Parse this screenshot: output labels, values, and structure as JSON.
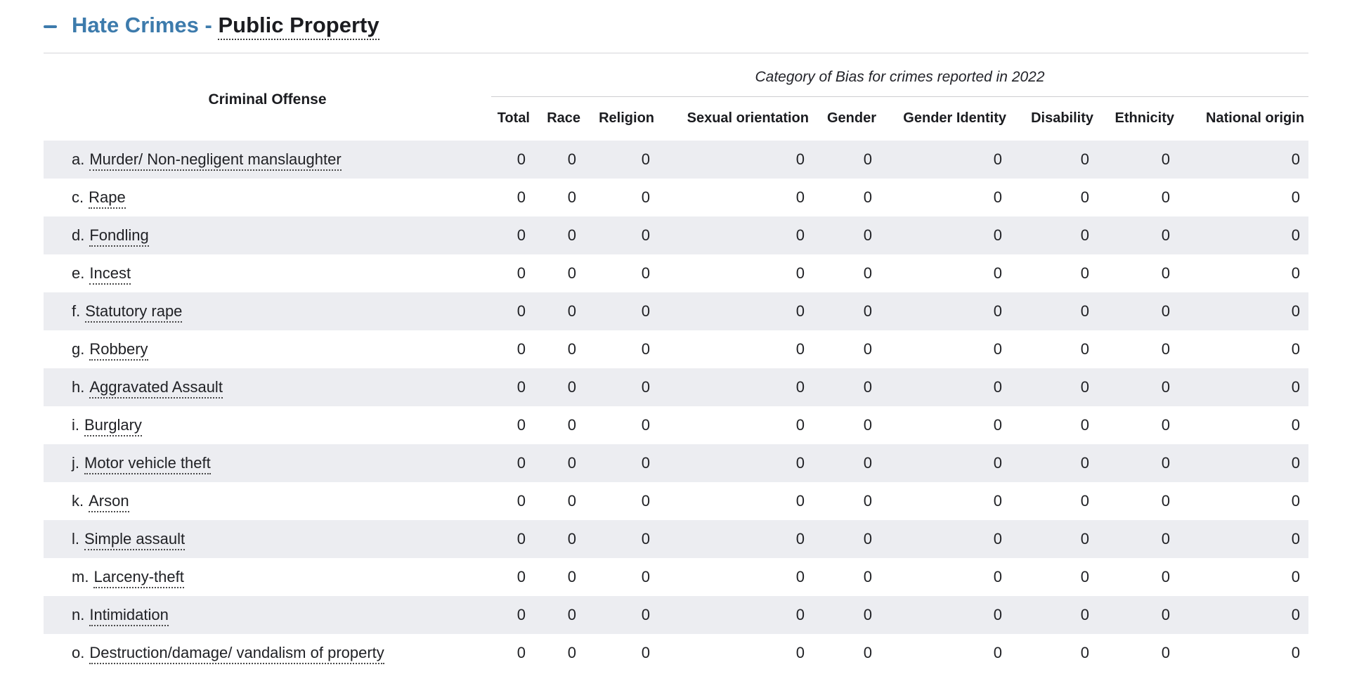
{
  "header": {
    "collapse_icon": "minus-icon",
    "title_prefix": "Hate Crimes - ",
    "title_term": "Public Property"
  },
  "table": {
    "offense_header": "Criminal Offense",
    "bias_group_header": "Category of Bias for crimes reported in 2022",
    "columns": [
      "Total",
      "Race",
      "Religion",
      "Sexual orientation",
      "Gender",
      "Gender Identity",
      "Disability",
      "Ethnicity",
      "National origin"
    ],
    "rows": [
      {
        "prefix": "a.",
        "label": "Murder/ Non-negligent manslaughter",
        "values": [
          0,
          0,
          0,
          0,
          0,
          0,
          0,
          0,
          0
        ]
      },
      {
        "prefix": "c.",
        "label": "Rape",
        "values": [
          0,
          0,
          0,
          0,
          0,
          0,
          0,
          0,
          0
        ]
      },
      {
        "prefix": "d.",
        "label": "Fondling",
        "values": [
          0,
          0,
          0,
          0,
          0,
          0,
          0,
          0,
          0
        ]
      },
      {
        "prefix": "e.",
        "label": "Incest",
        "values": [
          0,
          0,
          0,
          0,
          0,
          0,
          0,
          0,
          0
        ]
      },
      {
        "prefix": "f.",
        "label": "Statutory rape",
        "values": [
          0,
          0,
          0,
          0,
          0,
          0,
          0,
          0,
          0
        ]
      },
      {
        "prefix": "g.",
        "label": "Robbery",
        "values": [
          0,
          0,
          0,
          0,
          0,
          0,
          0,
          0,
          0
        ]
      },
      {
        "prefix": "h.",
        "label": "Aggravated Assault",
        "values": [
          0,
          0,
          0,
          0,
          0,
          0,
          0,
          0,
          0
        ]
      },
      {
        "prefix": "i.",
        "label": "Burglary",
        "values": [
          0,
          0,
          0,
          0,
          0,
          0,
          0,
          0,
          0
        ]
      },
      {
        "prefix": "j.",
        "label": "Motor vehicle theft",
        "values": [
          0,
          0,
          0,
          0,
          0,
          0,
          0,
          0,
          0
        ]
      },
      {
        "prefix": "k.",
        "label": "Arson",
        "values": [
          0,
          0,
          0,
          0,
          0,
          0,
          0,
          0,
          0
        ]
      },
      {
        "prefix": "l.",
        "label": "Simple assault",
        "values": [
          0,
          0,
          0,
          0,
          0,
          0,
          0,
          0,
          0
        ]
      },
      {
        "prefix": "m.",
        "label": "Larceny-theft",
        "values": [
          0,
          0,
          0,
          0,
          0,
          0,
          0,
          0,
          0
        ]
      },
      {
        "prefix": "n.",
        "label": "Intimidation",
        "values": [
          0,
          0,
          0,
          0,
          0,
          0,
          0,
          0,
          0
        ]
      },
      {
        "prefix": "o.",
        "label": "Destruction/damage/ vandalism of property",
        "values": [
          0,
          0,
          0,
          0,
          0,
          0,
          0,
          0,
          0
        ]
      }
    ]
  },
  "colors": {
    "accent_blue": "#3d7bac",
    "row_stripe": "#ecedf1",
    "divider": "#d5d6d9"
  }
}
